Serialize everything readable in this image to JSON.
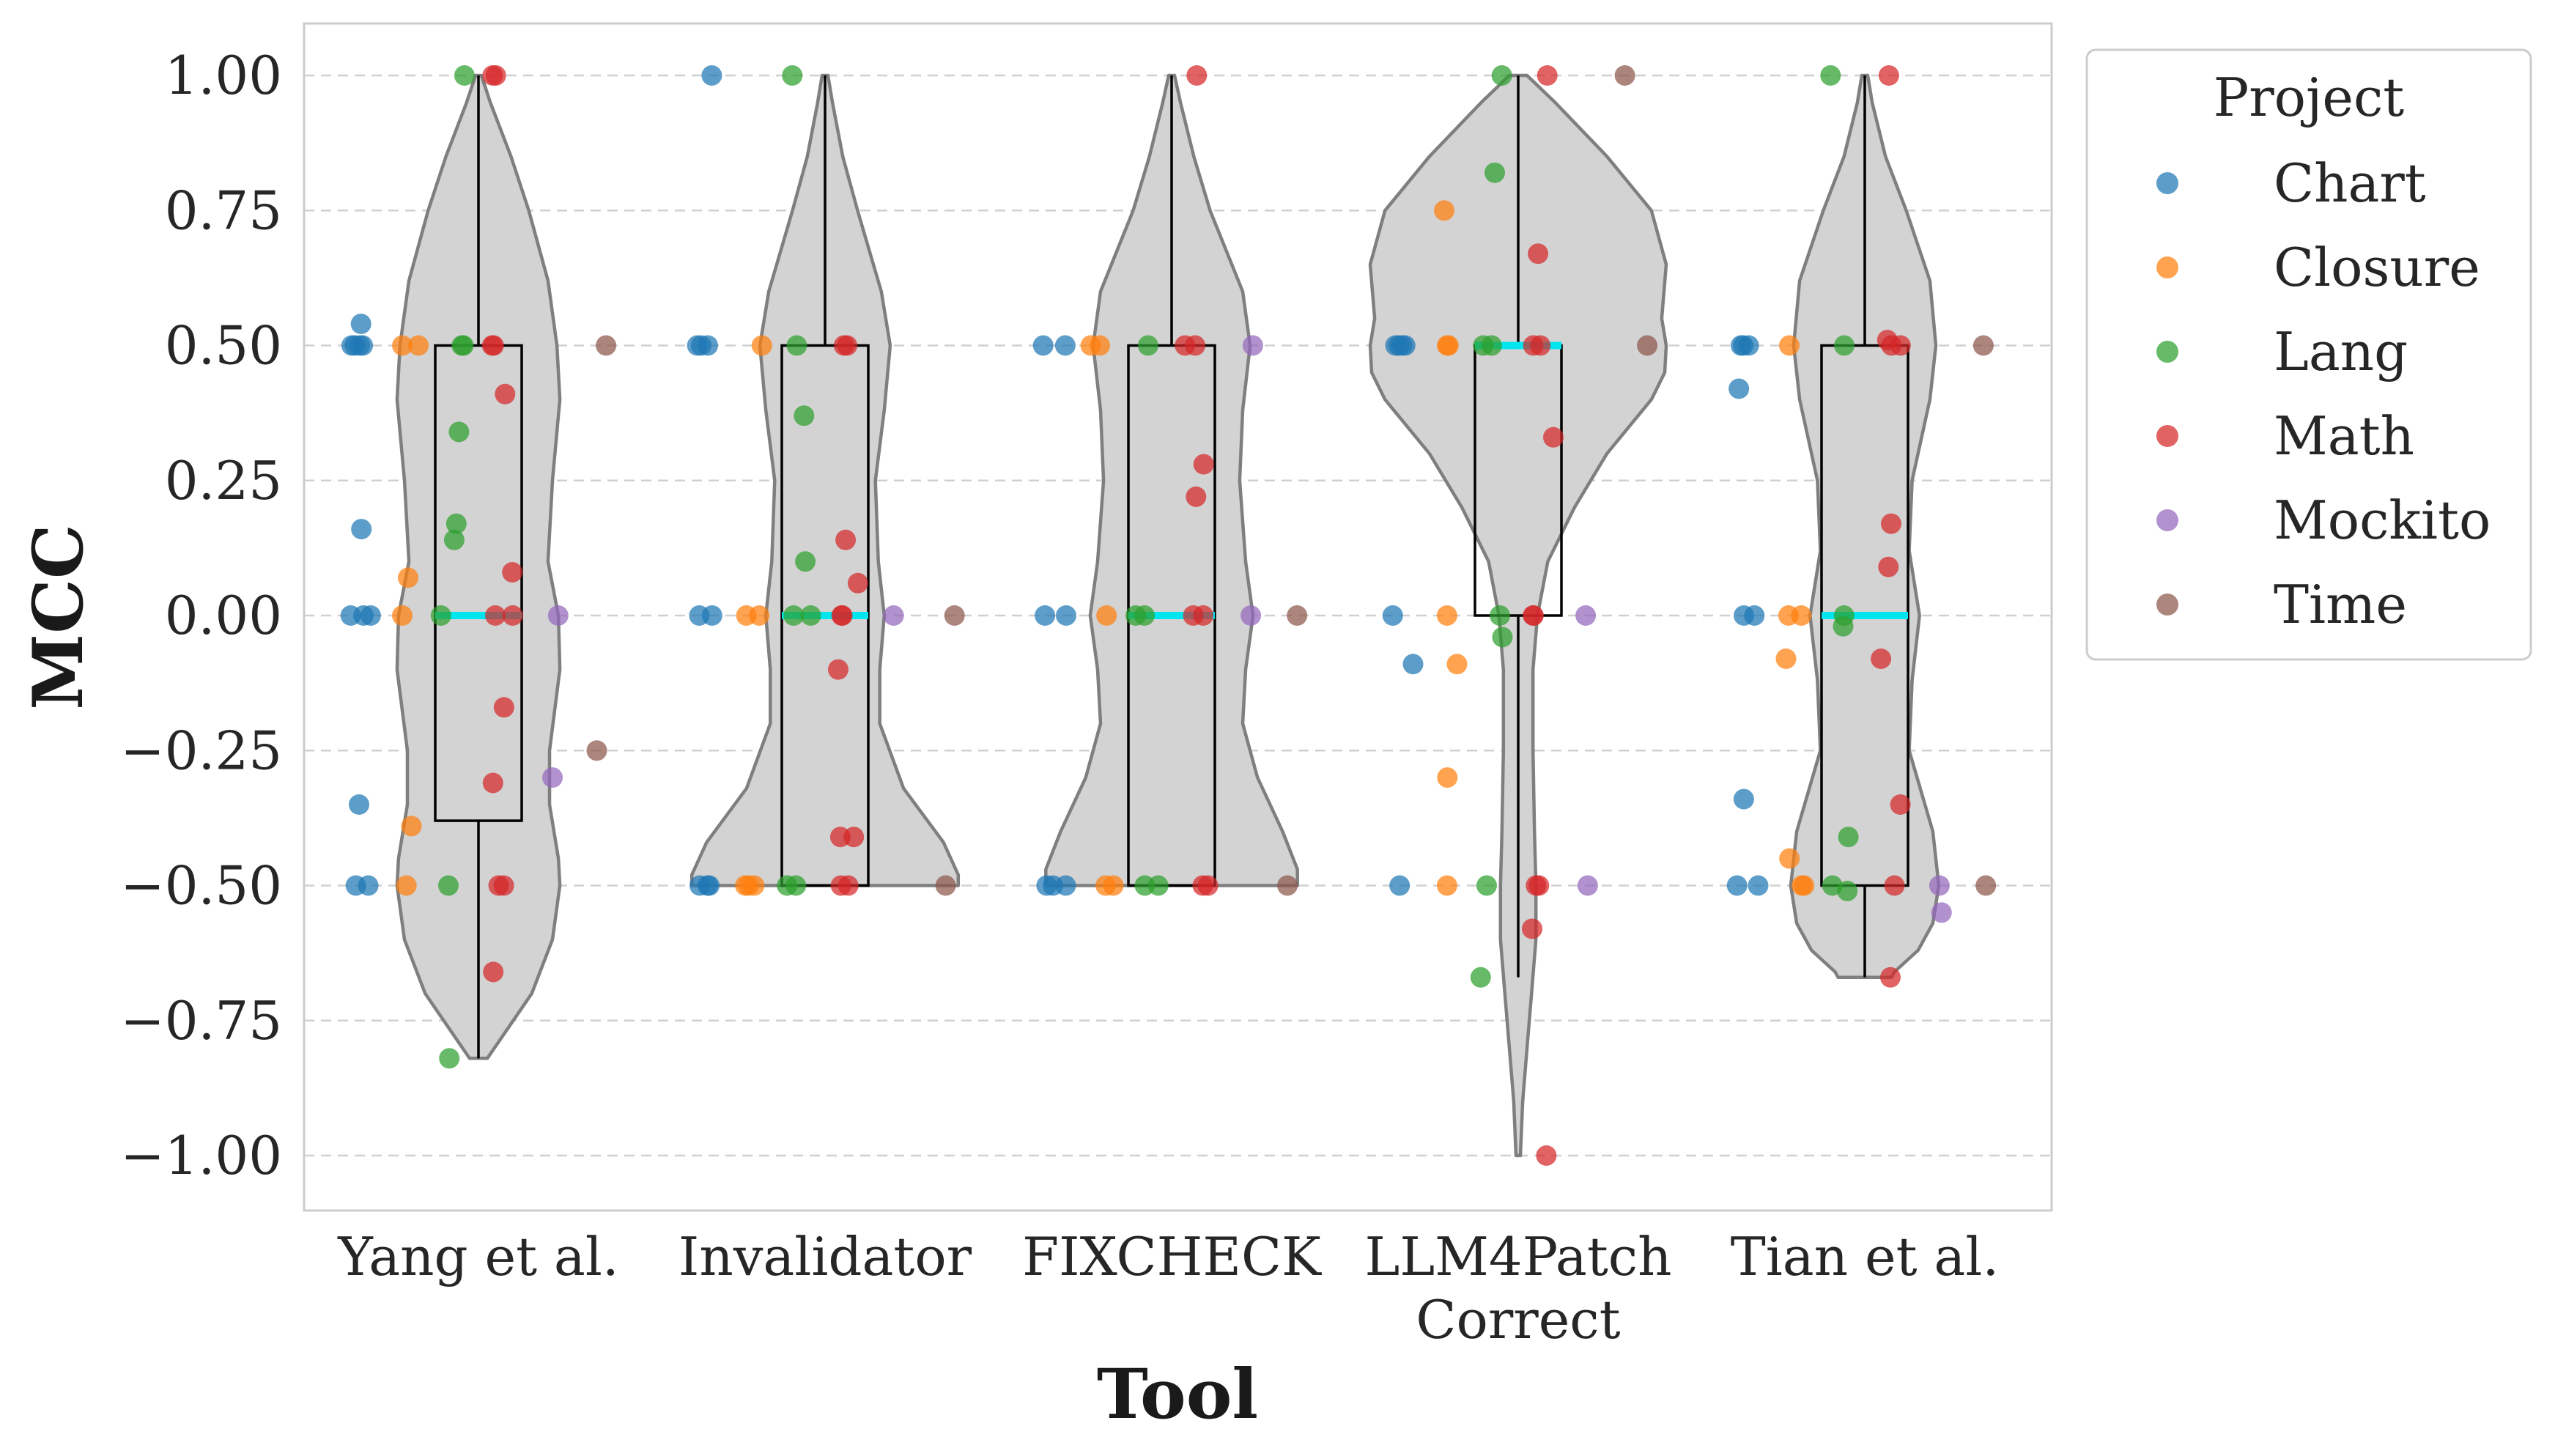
{
  "chart_data": {
    "type": "violin",
    "xlabel": "Tool",
    "ylabel": "MCC",
    "ylim": [
      -1.1,
      1.1
    ],
    "yticks": [
      1.0,
      0.75,
      0.5,
      0.25,
      0.0,
      -0.25,
      -0.5,
      -0.75,
      -1.0
    ],
    "ytick_labels": [
      "1.00",
      "0.75",
      "0.50",
      "0.25",
      "0.00",
      "−0.25",
      "−0.50",
      "−0.75",
      "−1.00"
    ],
    "grid": "horizontal dashed",
    "categories": [
      "Yang et al.",
      "Invalidator",
      "FIXCHECK",
      "LLM4Patch\nCorrect",
      "Tian et al."
    ],
    "violin_color": "#d3d3d3",
    "median_color": "#00e5ee",
    "legend": {
      "title": "Project",
      "placement": "outside right",
      "entries": [
        {
          "name": "Chart",
          "color": "#1f77b4"
        },
        {
          "name": "Closure",
          "color": "#ff7f0e"
        },
        {
          "name": "Lang",
          "color": "#2ca02c"
        },
        {
          "name": "Math",
          "color": "#d62728"
        },
        {
          "name": "Mockito",
          "color": "#9467bd"
        },
        {
          "name": "Time",
          "color": "#8c564b"
        }
      ]
    },
    "boxes": [
      {
        "tool": "Yang et al.",
        "q1": -0.38,
        "median": 0.0,
        "q3": 0.5,
        "whisker_low": -0.82,
        "whisker_high": 1.0
      },
      {
        "tool": "Invalidator",
        "q1": -0.5,
        "median": 0.0,
        "q3": 0.5,
        "whisker_low": -0.5,
        "whisker_high": 1.0
      },
      {
        "tool": "FIXCHECK",
        "q1": -0.5,
        "median": 0.0,
        "q3": 0.5,
        "whisker_low": -0.5,
        "whisker_high": 1.0
      },
      {
        "tool": "LLM4Patch\nCorrect",
        "q1": 0.0,
        "median": 0.5,
        "q3": 0.5,
        "whisker_low": -0.67,
        "whisker_high": 1.0
      },
      {
        "tool": "Tian et al.",
        "q1": -0.5,
        "median": 0.0,
        "q3": 0.5,
        "whisker_low": -0.67,
        "whisker_high": 1.0
      }
    ],
    "violins": [
      {
        "tool": "Yang et al.",
        "min": -0.82,
        "max": 1.0,
        "profile": [
          [
            1.0,
            0.02
          ],
          [
            0.95,
            0.08
          ],
          [
            0.85,
            0.22
          ],
          [
            0.75,
            0.34
          ],
          [
            0.62,
            0.47
          ],
          [
            0.5,
            0.53
          ],
          [
            0.4,
            0.55
          ],
          [
            0.25,
            0.5
          ],
          [
            0.1,
            0.47
          ],
          [
            0.0,
            0.54
          ],
          [
            -0.1,
            0.55
          ],
          [
            -0.25,
            0.48
          ],
          [
            -0.35,
            0.48
          ],
          [
            -0.45,
            0.54
          ],
          [
            -0.5,
            0.55
          ],
          [
            -0.6,
            0.5
          ],
          [
            -0.7,
            0.36
          ],
          [
            -0.78,
            0.16
          ],
          [
            -0.82,
            0.06
          ]
        ]
      },
      {
        "tool": "Invalidator",
        "min": -0.5,
        "max": 1.0,
        "profile": [
          [
            1.0,
            0.02
          ],
          [
            0.95,
            0.05
          ],
          [
            0.85,
            0.12
          ],
          [
            0.75,
            0.22
          ],
          [
            0.6,
            0.38
          ],
          [
            0.5,
            0.44
          ],
          [
            0.38,
            0.4
          ],
          [
            0.25,
            0.34
          ],
          [
            0.1,
            0.36
          ],
          [
            0.0,
            0.4
          ],
          [
            -0.1,
            0.37
          ],
          [
            -0.2,
            0.37
          ],
          [
            -0.32,
            0.53
          ],
          [
            -0.42,
            0.8
          ],
          [
            -0.48,
            0.9
          ],
          [
            -0.5,
            0.9
          ]
        ]
      },
      {
        "tool": "FIXCHECK",
        "min": -0.5,
        "max": 1.0,
        "profile": [
          [
            1.0,
            0.02
          ],
          [
            0.95,
            0.06
          ],
          [
            0.85,
            0.15
          ],
          [
            0.75,
            0.26
          ],
          [
            0.6,
            0.48
          ],
          [
            0.5,
            0.53
          ],
          [
            0.38,
            0.48
          ],
          [
            0.25,
            0.46
          ],
          [
            0.1,
            0.5
          ],
          [
            0.0,
            0.55
          ],
          [
            -0.1,
            0.5
          ],
          [
            -0.2,
            0.48
          ],
          [
            -0.3,
            0.58
          ],
          [
            -0.4,
            0.75
          ],
          [
            -0.47,
            0.85
          ],
          [
            -0.5,
            0.85
          ]
        ]
      },
      {
        "tool": "LLM4Patch\nCorrect",
        "min": -1.0,
        "max": 1.0,
        "profile": [
          [
            1.0,
            0.06
          ],
          [
            0.95,
            0.25
          ],
          [
            0.85,
            0.6
          ],
          [
            0.75,
            0.9
          ],
          [
            0.65,
            1.0
          ],
          [
            0.55,
            0.97
          ],
          [
            0.5,
            1.0
          ],
          [
            0.45,
            0.99
          ],
          [
            0.4,
            0.9
          ],
          [
            0.3,
            0.6
          ],
          [
            0.2,
            0.38
          ],
          [
            0.1,
            0.2
          ],
          [
            0.0,
            0.13
          ],
          [
            -0.1,
            0.1
          ],
          [
            -0.25,
            0.1
          ],
          [
            -0.4,
            0.11
          ],
          [
            -0.5,
            0.12
          ],
          [
            -0.6,
            0.12
          ],
          [
            -0.7,
            0.09
          ],
          [
            -0.8,
            0.06
          ],
          [
            -0.9,
            0.03
          ],
          [
            -1.0,
            0.015
          ]
        ]
      },
      {
        "tool": "Tian et al.",
        "min": -0.67,
        "max": 1.0,
        "profile": [
          [
            1.0,
            0.02
          ],
          [
            0.95,
            0.05
          ],
          [
            0.85,
            0.14
          ],
          [
            0.75,
            0.28
          ],
          [
            0.62,
            0.44
          ],
          [
            0.5,
            0.48
          ],
          [
            0.4,
            0.44
          ],
          [
            0.25,
            0.32
          ],
          [
            0.12,
            0.3
          ],
          [
            0.0,
            0.37
          ],
          [
            -0.12,
            0.32
          ],
          [
            -0.25,
            0.3
          ],
          [
            -0.4,
            0.46
          ],
          [
            -0.5,
            0.5
          ],
          [
            -0.57,
            0.46
          ],
          [
            -0.62,
            0.36
          ],
          [
            -0.66,
            0.2
          ],
          [
            -0.67,
            0.18
          ]
        ]
      }
    ],
    "series": [
      {
        "name": "Chart",
        "points": [
          [
            0,
            0.54
          ],
          [
            0,
            0.5
          ],
          [
            0,
            0.5
          ],
          [
            0,
            0.5
          ],
          [
            0,
            0.5
          ],
          [
            0,
            0.16
          ],
          [
            0,
            0.0
          ],
          [
            0,
            0.0
          ],
          [
            0,
            0.0
          ],
          [
            0,
            -0.35
          ],
          [
            0,
            -0.5
          ],
          [
            0,
            -0.5
          ],
          [
            1,
            1.0
          ],
          [
            1,
            0.5
          ],
          [
            1,
            0.5
          ],
          [
            1,
            0.5
          ],
          [
            1,
            0.0
          ],
          [
            1,
            0.0
          ],
          [
            1,
            -0.5
          ],
          [
            1,
            -0.5
          ],
          [
            1,
            -0.5
          ],
          [
            2,
            0.5
          ],
          [
            2,
            0.5
          ],
          [
            2,
            0.0
          ],
          [
            2,
            0.0
          ],
          [
            2,
            -0.5
          ],
          [
            2,
            -0.5
          ],
          [
            2,
            -0.5
          ],
          [
            3,
            0.5
          ],
          [
            3,
            0.5
          ],
          [
            3,
            0.5
          ],
          [
            3,
            0.5
          ],
          [
            3,
            0.0
          ],
          [
            3,
            -0.09
          ],
          [
            3,
            -0.5
          ],
          [
            4,
            0.5
          ],
          [
            4,
            0.5
          ],
          [
            4,
            0.5
          ],
          [
            4,
            0.42
          ],
          [
            4,
            0.0
          ],
          [
            4,
            0.0
          ],
          [
            4,
            -0.34
          ],
          [
            4,
            -0.5
          ],
          [
            4,
            -0.5
          ]
        ]
      },
      {
        "name": "Closure",
        "points": [
          [
            0,
            0.5
          ],
          [
            0,
            0.5
          ],
          [
            0,
            0.07
          ],
          [
            0,
            0.0
          ],
          [
            0,
            -0.39
          ],
          [
            0,
            -0.5
          ],
          [
            1,
            0.5
          ],
          [
            1,
            0.0
          ],
          [
            1,
            0.0
          ],
          [
            1,
            -0.5
          ],
          [
            1,
            -0.5
          ],
          [
            1,
            -0.5
          ],
          [
            2,
            0.5
          ],
          [
            2,
            0.5
          ],
          [
            2,
            0.0
          ],
          [
            2,
            -0.5
          ],
          [
            2,
            -0.5
          ],
          [
            3,
            0.75
          ],
          [
            3,
            0.5
          ],
          [
            3,
            0.5
          ],
          [
            3,
            0.0
          ],
          [
            3,
            -0.09
          ],
          [
            3,
            -0.3
          ],
          [
            3,
            -0.5
          ],
          [
            4,
            0.5
          ],
          [
            4,
            0.0
          ],
          [
            4,
            0.0
          ],
          [
            4,
            -0.08
          ],
          [
            4,
            -0.45
          ],
          [
            4,
            -0.5
          ],
          [
            4,
            -0.5
          ]
        ]
      },
      {
        "name": "Lang",
        "points": [
          [
            0,
            1.0
          ],
          [
            0,
            0.5
          ],
          [
            0,
            0.5
          ],
          [
            0,
            0.34
          ],
          [
            0,
            0.17
          ],
          [
            0,
            0.14
          ],
          [
            0,
            0.0
          ],
          [
            0,
            -0.5
          ],
          [
            0,
            -0.82
          ],
          [
            1,
            1.0
          ],
          [
            1,
            0.5
          ],
          [
            1,
            0.37
          ],
          [
            1,
            0.1
          ],
          [
            1,
            0.0
          ],
          [
            1,
            0.0
          ],
          [
            1,
            -0.5
          ],
          [
            1,
            -0.5
          ],
          [
            2,
            0.5
          ],
          [
            2,
            0.0
          ],
          [
            2,
            0.0
          ],
          [
            2,
            -0.5
          ],
          [
            2,
            -0.5
          ],
          [
            3,
            1.0
          ],
          [
            3,
            0.82
          ],
          [
            3,
            0.5
          ],
          [
            3,
            0.5
          ],
          [
            3,
            0.0
          ],
          [
            3,
            -0.04
          ],
          [
            3,
            -0.5
          ],
          [
            3,
            -0.67
          ],
          [
            4,
            1.0
          ],
          [
            4,
            0.5
          ],
          [
            4,
            0.0
          ],
          [
            4,
            -0.02
          ],
          [
            4,
            -0.41
          ],
          [
            4,
            -0.5
          ],
          [
            4,
            -0.51
          ]
        ]
      },
      {
        "name": "Math",
        "points": [
          [
            0,
            1.0
          ],
          [
            0,
            1.0
          ],
          [
            0,
            0.5
          ],
          [
            0,
            0.5
          ],
          [
            0,
            0.41
          ],
          [
            0,
            0.08
          ],
          [
            0,
            0.0
          ],
          [
            0,
            0.0
          ],
          [
            0,
            -0.17
          ],
          [
            0,
            -0.31
          ],
          [
            0,
            -0.5
          ],
          [
            0,
            -0.5
          ],
          [
            0,
            -0.66
          ],
          [
            1,
            0.5
          ],
          [
            1,
            0.5
          ],
          [
            1,
            0.14
          ],
          [
            1,
            0.06
          ],
          [
            1,
            0.0
          ],
          [
            1,
            0.0
          ],
          [
            1,
            -0.1
          ],
          [
            1,
            -0.41
          ],
          [
            1,
            -0.41
          ],
          [
            1,
            -0.5
          ],
          [
            1,
            -0.5
          ],
          [
            2,
            1.0
          ],
          [
            2,
            0.5
          ],
          [
            2,
            0.5
          ],
          [
            2,
            0.28
          ],
          [
            2,
            0.22
          ],
          [
            2,
            0.0
          ],
          [
            2,
            0.0
          ],
          [
            2,
            -0.5
          ],
          [
            2,
            -0.5
          ],
          [
            3,
            1.0
          ],
          [
            3,
            0.67
          ],
          [
            3,
            0.5
          ],
          [
            3,
            0.5
          ],
          [
            3,
            0.33
          ],
          [
            3,
            0.0
          ],
          [
            3,
            0.0
          ],
          [
            3,
            -0.5
          ],
          [
            3,
            -0.5
          ],
          [
            3,
            -0.58
          ],
          [
            3,
            -1.0
          ],
          [
            4,
            1.0
          ],
          [
            4,
            0.51
          ],
          [
            4,
            0.5
          ],
          [
            4,
            0.5
          ],
          [
            4,
            0.17
          ],
          [
            4,
            0.09
          ],
          [
            4,
            -0.08
          ],
          [
            4,
            -0.35
          ],
          [
            4,
            -0.5
          ],
          [
            4,
            -0.67
          ]
        ]
      },
      {
        "name": "Mockito",
        "points": [
          [
            0,
            0.0
          ],
          [
            0,
            -0.3
          ],
          [
            1,
            0.0
          ],
          [
            2,
            0.5
          ],
          [
            2,
            0.0
          ],
          [
            3,
            0.0
          ],
          [
            3,
            -0.5
          ],
          [
            4,
            -0.5
          ],
          [
            4,
            -0.55
          ]
        ]
      },
      {
        "name": "Time",
        "points": [
          [
            0,
            0.5
          ],
          [
            0,
            -0.25
          ],
          [
            1,
            0.0
          ],
          [
            1,
            -0.5
          ],
          [
            2,
            0.0
          ],
          [
            2,
            -0.5
          ],
          [
            3,
            1.0
          ],
          [
            3,
            0.5
          ],
          [
            4,
            0.5
          ],
          [
            4,
            -0.5
          ]
        ]
      }
    ]
  }
}
